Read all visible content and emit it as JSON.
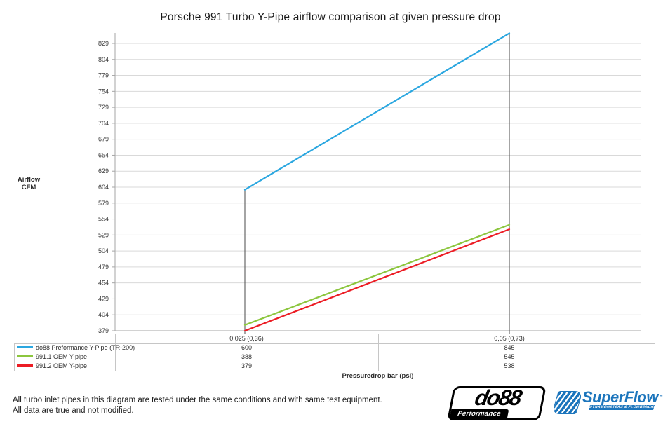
{
  "title": "Porsche 991 Turbo Y-Pipe airflow comparison at given pressure drop",
  "chart_data": {
    "type": "line",
    "title": "Porsche 991 Turbo Y-Pipe airflow comparison at given pressure drop",
    "xlabel": "Pressuredrop bar (psi)",
    "ylabel": "Airflow CFM",
    "categories": [
      "0,025 (0,36)",
      "0,05 (0,73)"
    ],
    "y_ticks": [
      829,
      804,
      779,
      754,
      729,
      704,
      679,
      654,
      629,
      604,
      579,
      554,
      529,
      504,
      479,
      454,
      429,
      404,
      379
    ],
    "ylim": [
      379,
      845
    ],
    "grid": "horizontal",
    "legend_position": "table-bottom",
    "series": [
      {
        "name": "do88 Preformance Y-Pipe (TR-200)",
        "color": "#2ba7e0",
        "values": [
          600,
          845
        ]
      },
      {
        "name": "991.1 OEM Y-pipe",
        "color": "#8cc63e",
        "values": [
          388,
          545
        ]
      },
      {
        "name": "991.2 OEM Y-pipe",
        "color": "#ec1c24",
        "values": [
          379,
          538
        ]
      }
    ]
  },
  "axis": {
    "ylabel_line1": "Airflow",
    "ylabel_line2": "CFM",
    "xlabel": "Pressuredrop bar (psi)"
  },
  "footer": {
    "line1": "All turbo inlet pipes in this diagram are tested under the same conditions and with same test equipment.",
    "line2": "All data are true and not modified."
  },
  "logos": {
    "do88": {
      "text": "do88",
      "sub": "Performance"
    },
    "superflow": {
      "text": "SuperFlow",
      "tm": "™",
      "sub": "DYNAMOMETERS & FLOWBENCHES",
      "color": "#1c75bc"
    }
  },
  "colors": {
    "grid": "#d9d9d9",
    "axis": "#a6a6a6",
    "drop_line": "#4a4a4a",
    "table_border": "#c6c6c6"
  }
}
